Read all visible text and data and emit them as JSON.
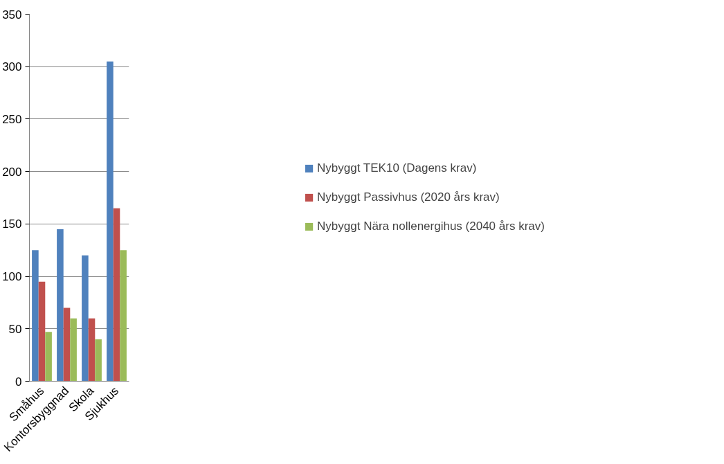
{
  "chart_data": {
    "type": "bar",
    "categories": [
      "Småhus",
      "Kontorsbyggnad",
      "Skola",
      "Sjukhus"
    ],
    "series": [
      {
        "name": "Nybyggt TEK10 (Dagens krav)",
        "color": "#4f81bd",
        "values": [
          125,
          145,
          120,
          305
        ]
      },
      {
        "name": "Nybyggt Passivhus (2020 års krav)",
        "color": "#c0504d",
        "values": [
          95,
          70,
          60,
          165
        ]
      },
      {
        "name": "Nybyggt Nära nollenergihus (2040 års krav)",
        "color": "#9bbb59",
        "values": [
          47,
          60,
          40,
          125
        ]
      }
    ],
    "ylim": [
      0,
      350
    ],
    "yticks": [
      0,
      50,
      100,
      150,
      200,
      250,
      300,
      350
    ],
    "grid": "y",
    "legend": "right"
  }
}
